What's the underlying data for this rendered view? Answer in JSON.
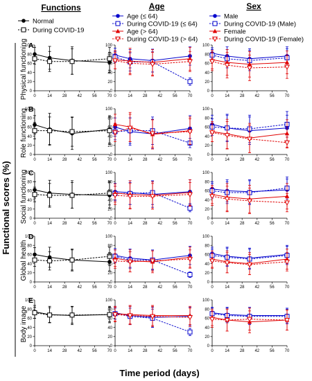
{
  "headers": {
    "functions": "Functions",
    "age": "Age",
    "sex": "Sex"
  },
  "legends": {
    "functions": [
      {
        "label": "Normal",
        "color": "#000000",
        "marker": "filled-circle",
        "dash": false
      },
      {
        "label": "During COVID-19",
        "color": "#000000",
        "marker": "open-square",
        "dash": true
      }
    ],
    "age": [
      {
        "label": "Age (≤ 64)",
        "color": "#0000cc",
        "marker": "filled-circle",
        "dash": false
      },
      {
        "label": "During COVID-19 (≤ 64)",
        "color": "#0000cc",
        "marker": "open-square",
        "dash": true
      },
      {
        "label": "Age (> 64)",
        "color": "#e00000",
        "marker": "filled-triangle",
        "dash": false
      },
      {
        "label": "During COVID-19 (> 64)",
        "color": "#e00000",
        "marker": "open-triangle-down",
        "dash": true
      }
    ],
    "sex": [
      {
        "label": "Male",
        "color": "#0000cc",
        "marker": "filled-circle",
        "dash": false
      },
      {
        "label": "During COVID-19 (Male)",
        "color": "#0000cc",
        "marker": "open-square",
        "dash": true
      },
      {
        "label": "Female",
        "color": "#e00000",
        "marker": "filled-triangle",
        "dash": false
      },
      {
        "label": "During COVID-19 (Female)",
        "color": "#e00000",
        "marker": "open-triangle-down",
        "dash": true
      }
    ]
  },
  "y_axis_title": "Functional scores (%)",
  "x_axis_title": "Time period (days)",
  "chart_data": {
    "type": "line",
    "x": [
      0,
      14,
      28,
      42,
      56,
      70
    ],
    "xlim": [
      0,
      70
    ],
    "ylim": [
      0,
      100
    ],
    "yticks": [
      0,
      20,
      40,
      60,
      80,
      100
    ],
    "rows": [
      {
        "letter": "A",
        "label": "Physical functioning",
        "functions": [
          {
            "x": [
              0,
              14,
              35,
              70
            ],
            "y": [
              80,
              72,
              66,
              62
            ],
            "err": [
              15,
              25,
              30,
              22
            ]
          },
          {
            "x": [
              0,
              14,
              35,
              70
            ],
            "y": [
              70,
              64,
              64,
              70
            ],
            "err": [
              12,
              22,
              28,
              25
            ]
          }
        ],
        "age": [
          {
            "x": [
              0,
              14,
              35,
              70
            ],
            "y": [
              78,
              70,
              66,
              76
            ],
            "err": [
              15,
              20,
              25,
              20
            ]
          },
          {
            "x": [
              0,
              14,
              35,
              70
            ],
            "y": [
              74,
              63,
              63,
              20
            ],
            "err": [
              12,
              20,
              22,
              8
            ]
          },
          {
            "x": [
              0,
              14,
              35,
              70
            ],
            "y": [
              68,
              65,
              62,
              70
            ],
            "err": [
              20,
              28,
              28,
              25
            ]
          },
          {
            "x": [
              0,
              14,
              35,
              70
            ],
            "y": [
              66,
              60,
              58,
              64
            ],
            "err": [
              18,
              25,
              26,
              22
            ]
          }
        ],
        "sex": [
          {
            "x": [
              0,
              14,
              35,
              70
            ],
            "y": [
              82,
              76,
              70,
              76
            ],
            "err": [
              12,
              20,
              22,
              20
            ]
          },
          {
            "x": [
              0,
              14,
              35,
              70
            ],
            "y": [
              78,
              70,
              66,
              72
            ],
            "err": [
              12,
              20,
              22,
              20
            ]
          },
          {
            "x": [
              0,
              14,
              35,
              70
            ],
            "y": [
              68,
              62,
              58,
              62
            ],
            "err": [
              20,
              28,
              28,
              25
            ]
          },
          {
            "x": [
              0,
              14,
              35,
              70
            ],
            "y": [
              64,
              56,
              50,
              52
            ],
            "err": [
              20,
              28,
              28,
              25
            ]
          }
        ]
      },
      {
        "letter": "B",
        "label": "Role functioning",
        "functions": [
          {
            "x": [
              0,
              14,
              35,
              70
            ],
            "y": [
              65,
              55,
              46,
              55
            ],
            "err": [
              20,
              35,
              35,
              30
            ]
          },
          {
            "x": [
              0,
              14,
              35,
              70
            ],
            "y": [
              52,
              52,
              50,
              52
            ],
            "err": [
              18,
              30,
              32,
              30
            ]
          }
        ],
        "age": [
          {
            "x": [
              0,
              14,
              35,
              70
            ],
            "y": [
              60,
              50,
              45,
              57
            ],
            "err": [
              20,
              30,
              32,
              28
            ]
          },
          {
            "x": [
              0,
              14,
              35,
              70
            ],
            "y": [
              50,
              52,
              52,
              25
            ],
            "err": [
              18,
              28,
              30,
              10
            ]
          },
          {
            "x": [
              0,
              14,
              35,
              70
            ],
            "y": [
              66,
              60,
              44,
              52
            ],
            "err": [
              22,
              32,
              32,
              30
            ]
          },
          {
            "x": [
              0,
              14,
              35,
              70
            ],
            "y": [
              48,
              58,
              46,
              50
            ],
            "err": [
              20,
              30,
              30,
              28
            ]
          }
        ],
        "sex": [
          {
            "x": [
              0,
              14,
              35,
              70
            ],
            "y": [
              66,
              58,
              52,
              58
            ],
            "err": [
              20,
              30,
              30,
              28
            ]
          },
          {
            "x": [
              0,
              14,
              35,
              70
            ],
            "y": [
              60,
              58,
              56,
              66
            ],
            "err": [
              18,
              28,
              30,
              28
            ]
          },
          {
            "x": [
              0,
              14,
              35,
              70
            ],
            "y": [
              50,
              45,
              36,
              46
            ],
            "err": [
              22,
              32,
              32,
              30
            ]
          },
          {
            "x": [
              0,
              14,
              35,
              70
            ],
            "y": [
              48,
              42,
              34,
              26
            ],
            "err": [
              20,
              30,
              30,
              12
            ]
          }
        ]
      },
      {
        "letter": "C",
        "label": "Social functioning",
        "functions": [
          {
            "x": [
              0,
              14,
              35,
              70
            ],
            "y": [
              62,
              55,
              52,
              50
            ],
            "err": [
              18,
              28,
              30,
              28
            ]
          },
          {
            "x": [
              0,
              14,
              35,
              70
            ],
            "y": [
              52,
              50,
              50,
              55
            ],
            "err": [
              16,
              26,
              28,
              26
            ]
          }
        ],
        "age": [
          {
            "x": [
              0,
              14,
              35,
              70
            ],
            "y": [
              58,
              56,
              52,
              58
            ],
            "err": [
              18,
              26,
              28,
              26
            ]
          },
          {
            "x": [
              0,
              14,
              35,
              70
            ],
            "y": [
              54,
              54,
              56,
              22
            ],
            "err": [
              16,
              24,
              26,
              8
            ]
          },
          {
            "x": [
              0,
              14,
              35,
              70
            ],
            "y": [
              55,
              52,
              50,
              56
            ],
            "err": [
              20,
              30,
              30,
              28
            ]
          },
          {
            "x": [
              0,
              14,
              35,
              70
            ],
            "y": [
              50,
              48,
              48,
              52
            ],
            "err": [
              20,
              28,
              28,
              26
            ]
          }
        ],
        "sex": [
          {
            "x": [
              0,
              14,
              35,
              70
            ],
            "y": [
              64,
              60,
              58,
              62
            ],
            "err": [
              16,
              24,
              26,
              24
            ]
          },
          {
            "x": [
              0,
              14,
              35,
              70
            ],
            "y": [
              60,
              56,
              56,
              66
            ],
            "err": [
              16,
              24,
              26,
              24
            ]
          },
          {
            "x": [
              0,
              14,
              35,
              70
            ],
            "y": [
              52,
              46,
              42,
              48
            ],
            "err": [
              20,
              30,
              30,
              28
            ]
          },
          {
            "x": [
              0,
              14,
              35,
              70
            ],
            "y": [
              48,
              42,
              38,
              34
            ],
            "err": [
              20,
              28,
              28,
              20
            ]
          }
        ]
      },
      {
        "letter": "D",
        "label": "Global health",
        "functions": [
          {
            "x": [
              0,
              14,
              35,
              70
            ],
            "y": [
              60,
              54,
              48,
              44
            ],
            "err": [
              15,
              22,
              24,
              20
            ]
          },
          {
            "x": [
              0,
              14,
              35,
              70
            ],
            "y": [
              48,
              46,
              48,
              56
            ],
            "err": [
              14,
              20,
              22,
              20
            ]
          }
        ],
        "age": [
          {
            "x": [
              0,
              14,
              35,
              70
            ],
            "y": [
              58,
              52,
              48,
              58
            ],
            "err": [
              15,
              20,
              22,
              20
            ]
          },
          {
            "x": [
              0,
              14,
              35,
              70
            ],
            "y": [
              56,
              48,
              48,
              16
            ],
            "err": [
              14,
              18,
              20,
              6
            ]
          },
          {
            "x": [
              0,
              14,
              35,
              70
            ],
            "y": [
              52,
              46,
              44,
              54
            ],
            "err": [
              18,
              24,
              24,
              22
            ]
          },
          {
            "x": [
              0,
              14,
              35,
              70
            ],
            "y": [
              46,
              44,
              46,
              50
            ],
            "err": [
              16,
              22,
              22,
              20
            ]
          }
        ],
        "sex": [
          {
            "x": [
              0,
              14,
              35,
              70
            ],
            "y": [
              62,
              56,
              52,
              60
            ],
            "err": [
              14,
              20,
              22,
              20
            ]
          },
          {
            "x": [
              0,
              14,
              35,
              70
            ],
            "y": [
              58,
              54,
              50,
              58
            ],
            "err": [
              14,
              20,
              22,
              20
            ]
          },
          {
            "x": [
              0,
              14,
              35,
              70
            ],
            "y": [
              50,
              44,
              40,
              50
            ],
            "err": [
              18,
              24,
              24,
              22
            ]
          },
          {
            "x": [
              0,
              14,
              35,
              70
            ],
            "y": [
              46,
              42,
              38,
              44
            ],
            "err": [
              16,
              22,
              22,
              20
            ]
          }
        ]
      },
      {
        "letter": "E",
        "label": "Body image",
        "functions": [
          {
            "x": [
              0,
              14,
              35,
              70
            ],
            "y": [
              74,
              68,
              66,
              68
            ],
            "err": [
              14,
              18,
              20,
              18
            ]
          },
          {
            "x": [
              0,
              14,
              35,
              70
            ],
            "y": [
              72,
              67,
              67,
              68
            ],
            "err": [
              12,
              16,
              18,
              16
            ]
          }
        ],
        "age": [
          {
            "x": [
              0,
              14,
              35,
              70
            ],
            "y": [
              72,
              66,
              62,
              64
            ],
            "err": [
              14,
              20,
              22,
              20
            ]
          },
          {
            "x": [
              0,
              14,
              35,
              70
            ],
            "y": [
              70,
              64,
              60,
              30
            ],
            "err": [
              12,
              18,
              20,
              8
            ]
          },
          {
            "x": [
              0,
              14,
              35,
              70
            ],
            "y": [
              70,
              68,
              66,
              66
            ],
            "err": [
              16,
              20,
              22,
              20
            ]
          },
          {
            "x": [
              0,
              14,
              35,
              70
            ],
            "y": [
              68,
              66,
              64,
              62
            ],
            "err": [
              16,
              20,
              22,
              20
            ]
          }
        ],
        "sex": [
          {
            "x": [
              0,
              14,
              35,
              70
            ],
            "y": [
              72,
              68,
              66,
              66
            ],
            "err": [
              12,
              16,
              18,
              16
            ]
          },
          {
            "x": [
              0,
              14,
              35,
              70
            ],
            "y": [
              70,
              66,
              64,
              64
            ],
            "err": [
              12,
              16,
              18,
              16
            ]
          },
          {
            "x": [
              0,
              14,
              35,
              70
            ],
            "y": [
              62,
              56,
              52,
              56
            ],
            "err": [
              18,
              24,
              24,
              22
            ]
          },
          {
            "x": [
              0,
              14,
              35,
              70
            ],
            "y": [
              58,
              56,
              58,
              56
            ],
            "err": [
              18,
              24,
              24,
              22
            ]
          }
        ]
      }
    ]
  }
}
